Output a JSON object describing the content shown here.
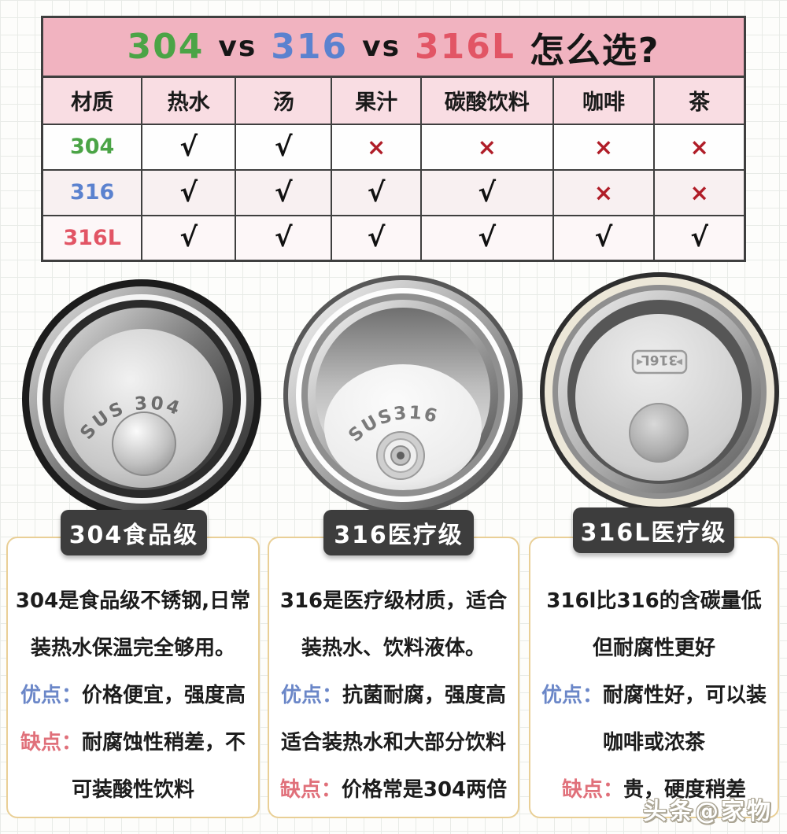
{
  "title": {
    "part_304": "304",
    "vs1": "vs",
    "part_316": "316",
    "vs2": "vs",
    "part_316l": "316L",
    "suffix": "怎么选?"
  },
  "colors": {
    "green_304": "#4ba446",
    "blue_316": "#5b82cf",
    "red_316l": "#e25565",
    "title_bg": "#f1b3c0",
    "header_bg": "#f9dde3",
    "cross_red": "#b01d28",
    "pros_blue": "#6b87c8",
    "cons_red": "#e0707a",
    "badge_bg": "#3d3d3d",
    "card_border": "#e9cf96"
  },
  "table": {
    "headers": [
      "材质",
      "热水",
      "汤",
      "果汁",
      "碳酸饮料",
      "咖啡",
      "茶"
    ],
    "check_glyph": "√",
    "cross_glyph": "×",
    "rows": [
      {
        "material": "304",
        "color": "#4ba446",
        "cells": [
          "√",
          "√",
          "×",
          "×",
          "×",
          "×"
        ]
      },
      {
        "material": "316",
        "color": "#5b82cf",
        "cells": [
          "√",
          "√",
          "√",
          "√",
          "×",
          "×"
        ]
      },
      {
        "material": "316L",
        "color": "#e25565",
        "cells": [
          "√",
          "√",
          "√",
          "√",
          "√",
          "√"
        ]
      }
    ]
  },
  "cups": [
    {
      "engraving": "SUS 304"
    },
    {
      "engraving": "SUS316"
    },
    {
      "engraving": "316L"
    }
  ],
  "sections": [
    {
      "badge": "304食品级",
      "intro": "304是食品级不锈钢,日常装热水保温完全够用。",
      "pros_label": "优点：",
      "pros": "价格便宜，强度高",
      "cons_label": "缺点：",
      "cons": "耐腐蚀性稍差，不可装酸性饮料"
    },
    {
      "badge": "316医疗级",
      "intro": "316是医疗级材质，适合装热水、饮料液体。",
      "pros_label": "优点：",
      "pros": "抗菌耐腐，强度高适合装热水和大部分饮料",
      "cons_label": "缺点：",
      "cons": "价格常是304两倍"
    },
    {
      "badge": "316L医疗级",
      "intro": "316l比316的含碳量低但耐腐性更好",
      "pros_label": "优点：",
      "pros": "耐腐性好，可以装咖啡或浓茶",
      "cons_label": "缺点：",
      "cons": "贵，硬度稍差"
    }
  ],
  "watermark": "头条@家物"
}
